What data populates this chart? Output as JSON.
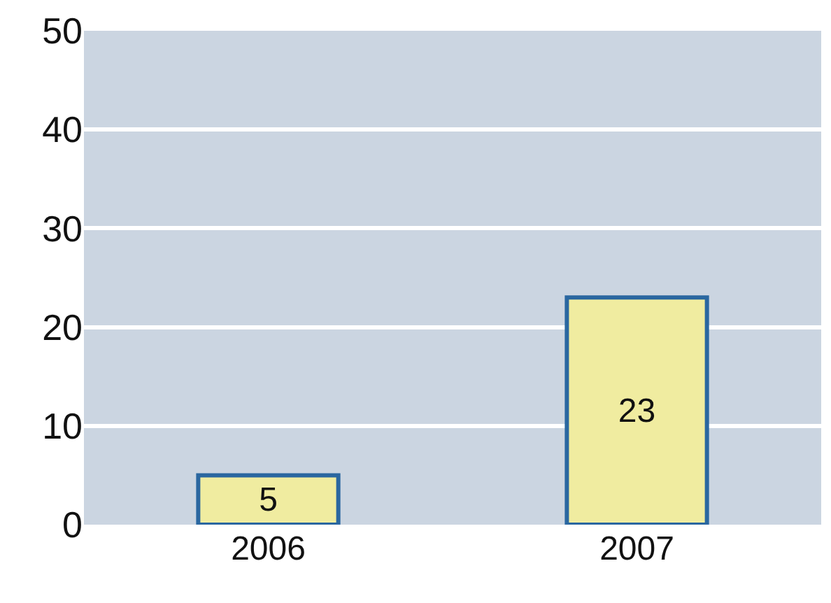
{
  "chart_data": {
    "type": "bar",
    "categories": [
      "2006",
      "2007"
    ],
    "values": [
      5,
      23
    ],
    "color": "#f0eca0",
    "ylim": [
      0,
      50
    ],
    "yticks": [
      0,
      10,
      20,
      30,
      40,
      50
    ],
    "grid": "y",
    "data_labels": true
  }
}
